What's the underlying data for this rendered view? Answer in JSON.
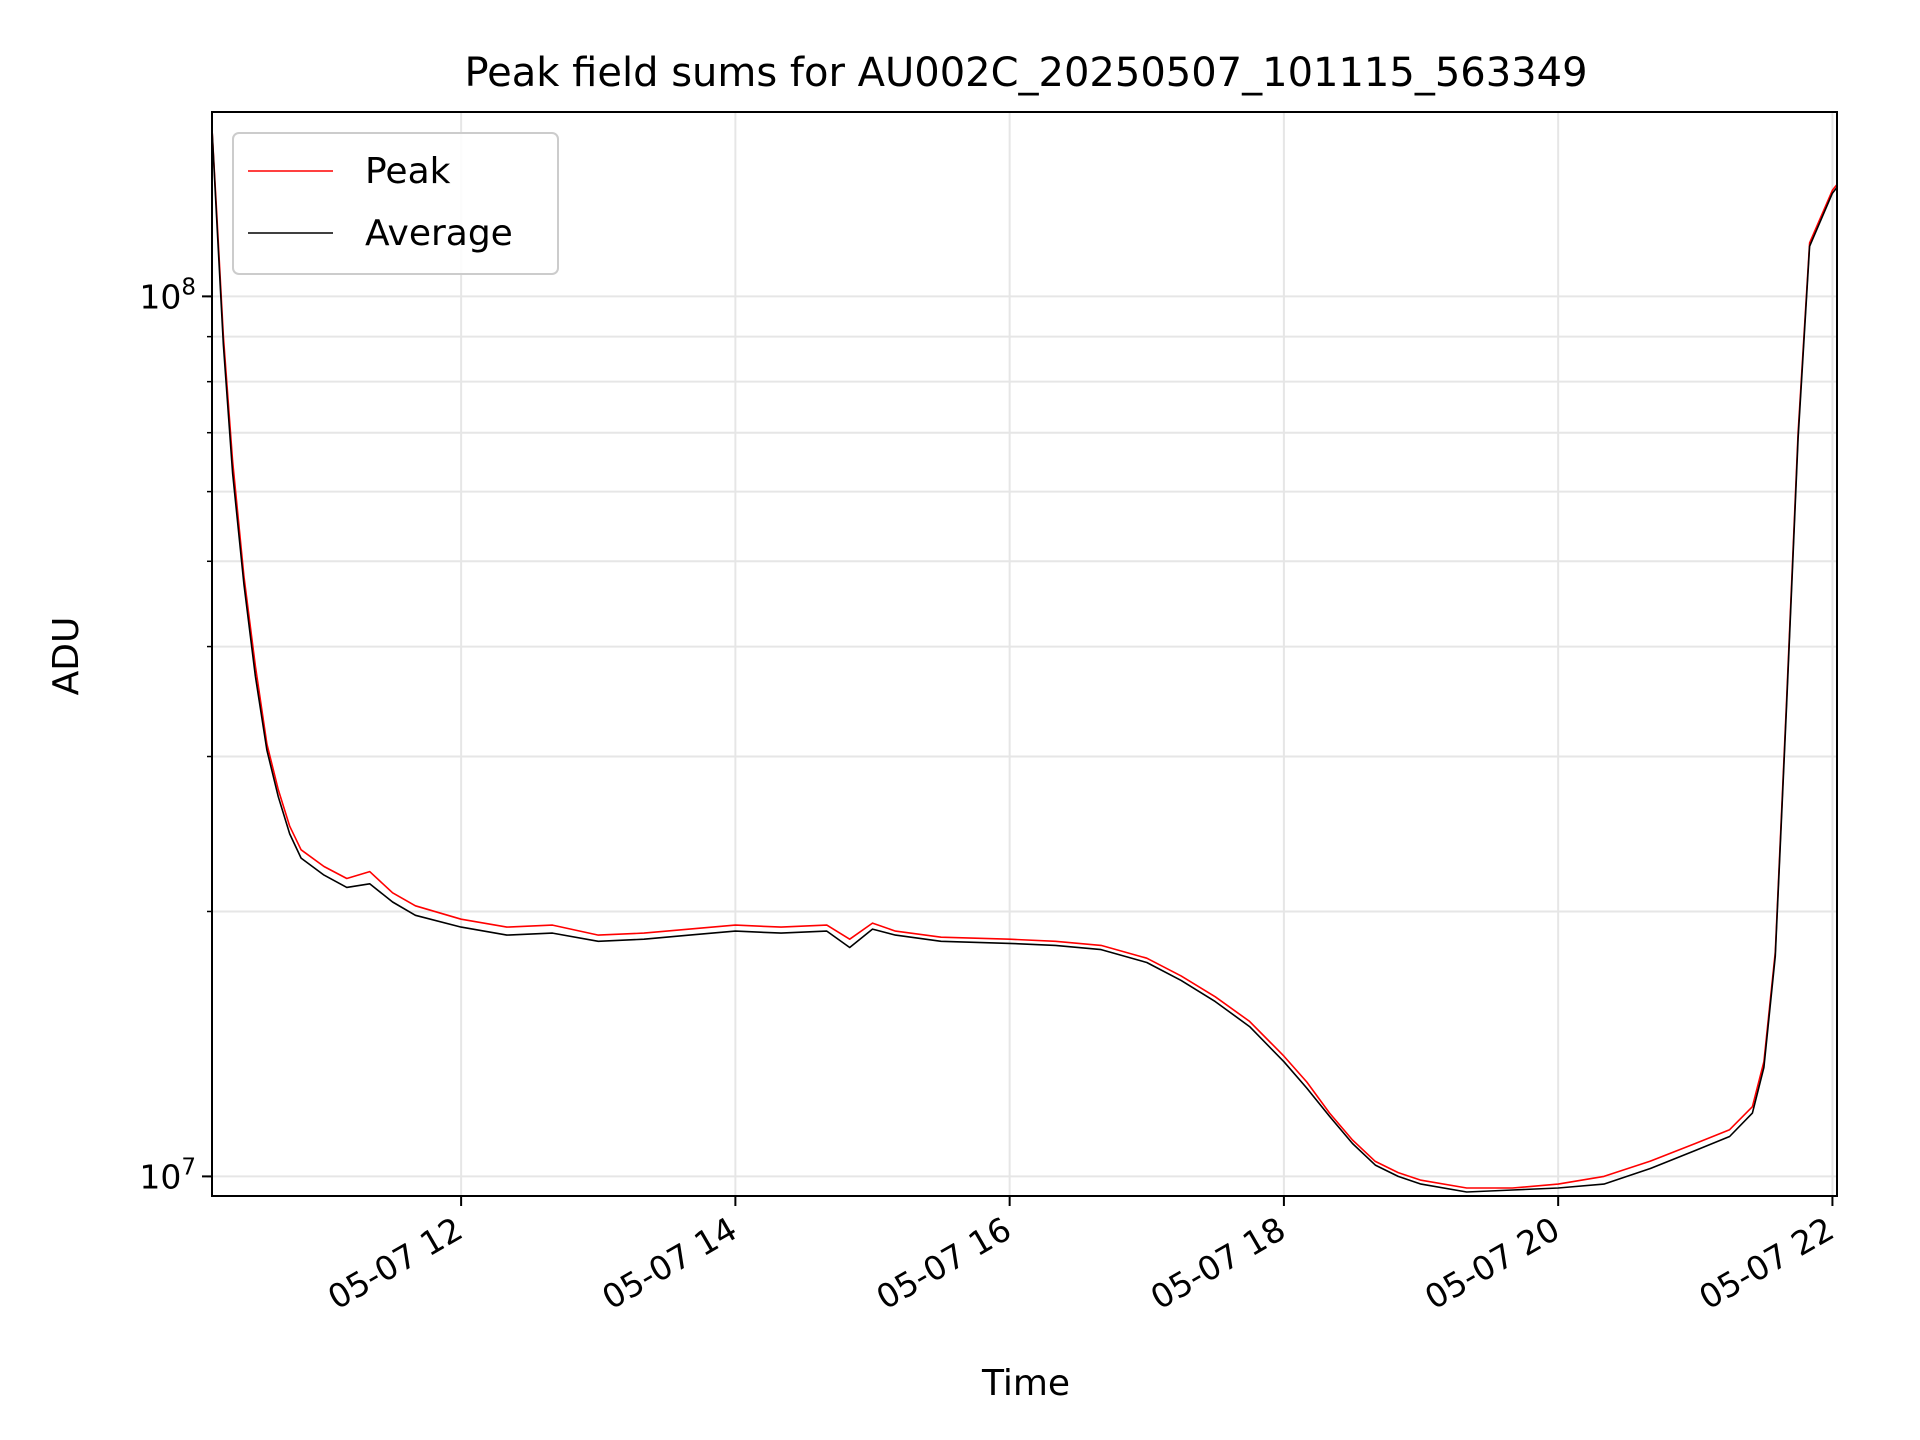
{
  "chart_data": {
    "type": "line",
    "title": "Peak field sums for AU002C_20250507_101115_563349",
    "xlabel": "Time",
    "ylabel": "ADU",
    "x_axis": {
      "type": "time",
      "range": [
        "2025-05-07 10:11",
        "2025-05-07 22:02"
      ],
      "ticks": [
        {
          "value": "2025-05-07 12:00",
          "label": "05-07 12"
        },
        {
          "value": "2025-05-07 14:00",
          "label": "05-07 14"
        },
        {
          "value": "2025-05-07 16:00",
          "label": "05-07 16"
        },
        {
          "value": "2025-05-07 18:00",
          "label": "05-07 18"
        },
        {
          "value": "2025-05-07 20:00",
          "label": "05-07 20"
        },
        {
          "value": "2025-05-07 22:00",
          "label": "05-07 22"
        }
      ],
      "tick_label_rotation": 30
    },
    "y_axis": {
      "scale": "log",
      "range": [
        9500000,
        162000000
      ],
      "ticks": [
        {
          "value": 10000000,
          "base": "10",
          "exp": "7"
        },
        {
          "value": 100000000,
          "base": "10",
          "exp": "8"
        }
      ]
    },
    "grid": true,
    "legend": {
      "position": "upper-left"
    },
    "series": [
      {
        "name": "Peak",
        "color": "#ff0000",
        "x": [
          "10:11",
          "10:13",
          "10:16",
          "10:20",
          "10:25",
          "10:30",
          "10:35",
          "10:40",
          "10:45",
          "10:50",
          "11:00",
          "11:10",
          "11:20",
          "11:30",
          "11:40",
          "12:00",
          "12:20",
          "12:40",
          "13:00",
          "13:20",
          "13:40",
          "14:00",
          "14:20",
          "14:40",
          "14:50",
          "15:00",
          "15:10",
          "15:30",
          "16:00",
          "16:20",
          "16:40",
          "17:00",
          "17:15",
          "17:30",
          "17:45",
          "18:00",
          "18:10",
          "18:20",
          "18:30",
          "18:40",
          "18:50",
          "19:00",
          "19:20",
          "19:40",
          "20:00",
          "20:20",
          "20:40",
          "21:00",
          "21:15",
          "21:25",
          "21:30",
          "21:35",
          "21:40",
          "21:45",
          "21:50",
          "22:00",
          "22:02"
        ],
        "y": [
          155000000,
          125000000,
          90000000,
          65000000,
          48000000,
          38000000,
          31000000,
          27500000,
          25000000,
          23500000,
          22500000,
          21800000,
          22200000,
          21000000,
          20300000,
          19600000,
          19200000,
          19300000,
          18800000,
          18900000,
          19100000,
          19300000,
          19200000,
          19300000,
          18600000,
          19400000,
          19000000,
          18700000,
          18600000,
          18500000,
          18300000,
          17700000,
          16900000,
          16000000,
          15000000,
          13700000,
          12800000,
          11800000,
          11000000,
          10400000,
          10100000,
          9900000,
          9700000,
          9700000,
          9800000,
          10000000,
          10400000,
          10900000,
          11300000,
          12000000,
          13500000,
          18000000,
          35000000,
          70000000,
          115000000,
          132000000,
          134000000
        ]
      },
      {
        "name": "Average",
        "color": "#000000",
        "x": [
          "10:11",
          "10:13",
          "10:16",
          "10:20",
          "10:25",
          "10:30",
          "10:35",
          "10:40",
          "10:45",
          "10:50",
          "11:00",
          "11:10",
          "11:20",
          "11:30",
          "11:40",
          "12:00",
          "12:20",
          "12:40",
          "13:00",
          "13:20",
          "13:40",
          "14:00",
          "14:20",
          "14:40",
          "14:50",
          "15:00",
          "15:10",
          "15:30",
          "16:00",
          "16:20",
          "16:40",
          "17:00",
          "17:15",
          "17:30",
          "17:45",
          "18:00",
          "18:10",
          "18:20",
          "18:30",
          "18:40",
          "18:50",
          "19:00",
          "19:20",
          "19:40",
          "20:00",
          "20:20",
          "20:40",
          "21:00",
          "21:15",
          "21:25",
          "21:30",
          "21:35",
          "21:40",
          "21:45",
          "21:50",
          "22:00",
          "22:02"
        ],
        "y": [
          155000000,
          123000000,
          88000000,
          63000000,
          47000000,
          37000000,
          30500000,
          27000000,
          24500000,
          23000000,
          22000000,
          21300000,
          21500000,
          20500000,
          19800000,
          19200000,
          18800000,
          18900000,
          18500000,
          18600000,
          18800000,
          19000000,
          18900000,
          19000000,
          18200000,
          19100000,
          18800000,
          18500000,
          18400000,
          18300000,
          18100000,
          17500000,
          16700000,
          15800000,
          14800000,
          13500000,
          12600000,
          11700000,
          10900000,
          10300000,
          10000000,
          9800000,
          9600000,
          9650000,
          9700000,
          9800000,
          10200000,
          10700000,
          11100000,
          11800000,
          13300000,
          17800000,
          34500000,
          69000000,
          114000000,
          131000000,
          133000000
        ]
      }
    ]
  }
}
